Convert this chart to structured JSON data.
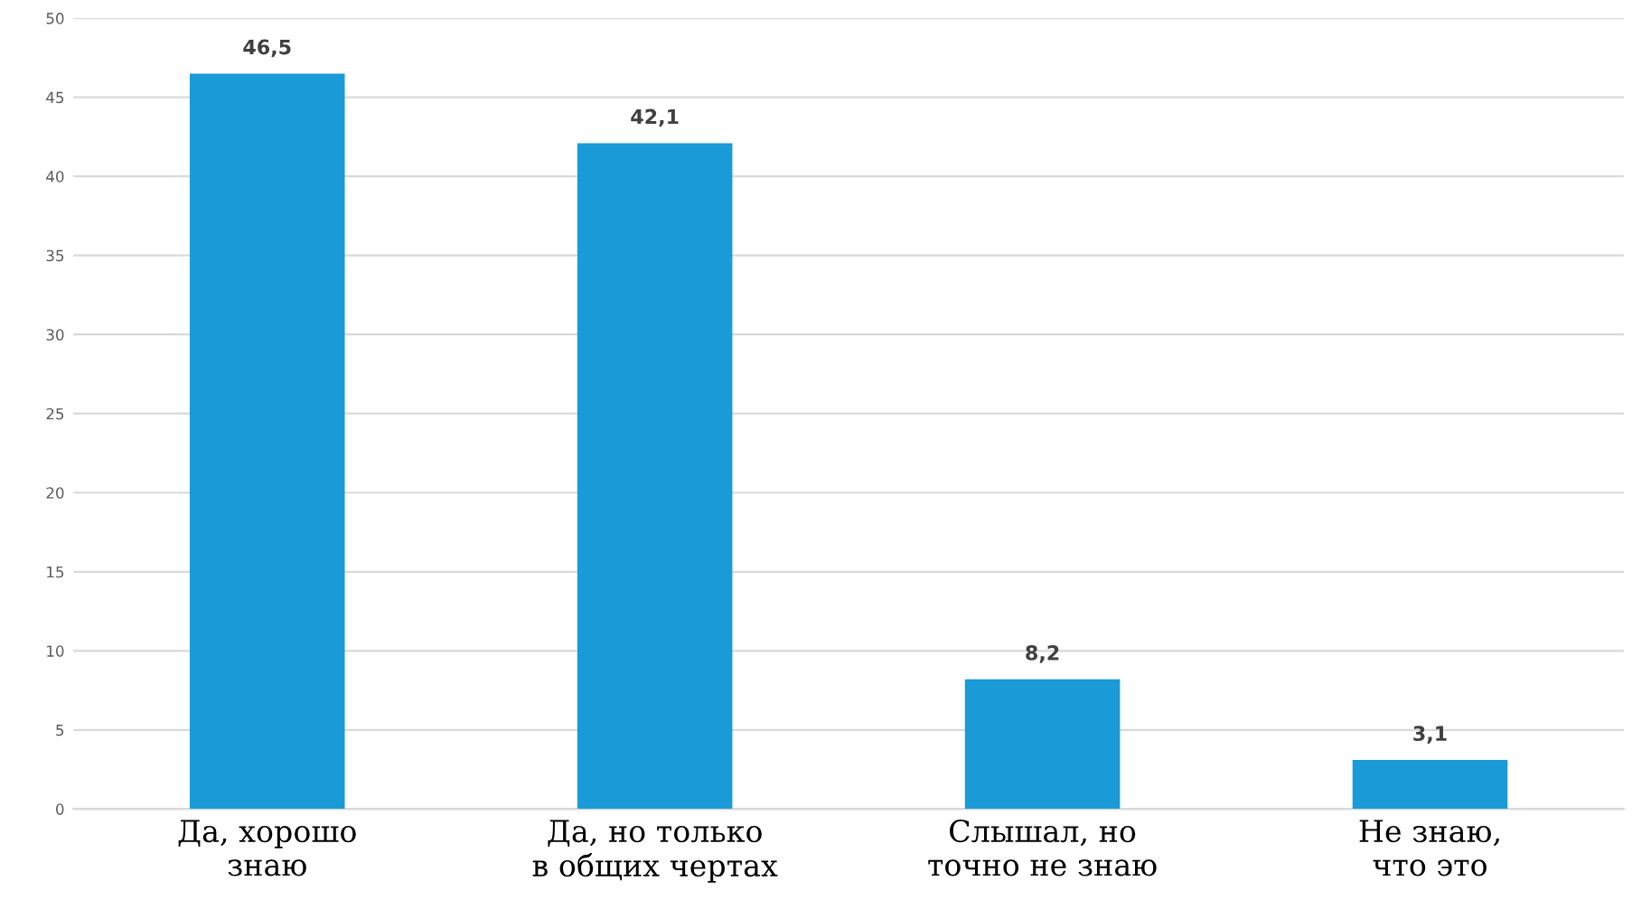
{
  "chart_data": {
    "type": "bar",
    "categories": [
      "Да, хорошо\nзнаю",
      "Да, но только\nв общих чертах",
      "Слышал, но\nточно не знаю",
      "Не знаю,\nчто это"
    ],
    "values": [
      46.5,
      42.1,
      8.2,
      3.1
    ],
    "value_labels": [
      "46,5",
      "42,1",
      "8,2",
      "3,1"
    ],
    "color": "#1a9bd7",
    "ylim": [
      0,
      50
    ],
    "yticks": [
      0,
      5,
      10,
      15,
      20,
      25,
      30,
      35,
      40,
      45,
      50
    ],
    "grid": "y",
    "legend": false
  }
}
